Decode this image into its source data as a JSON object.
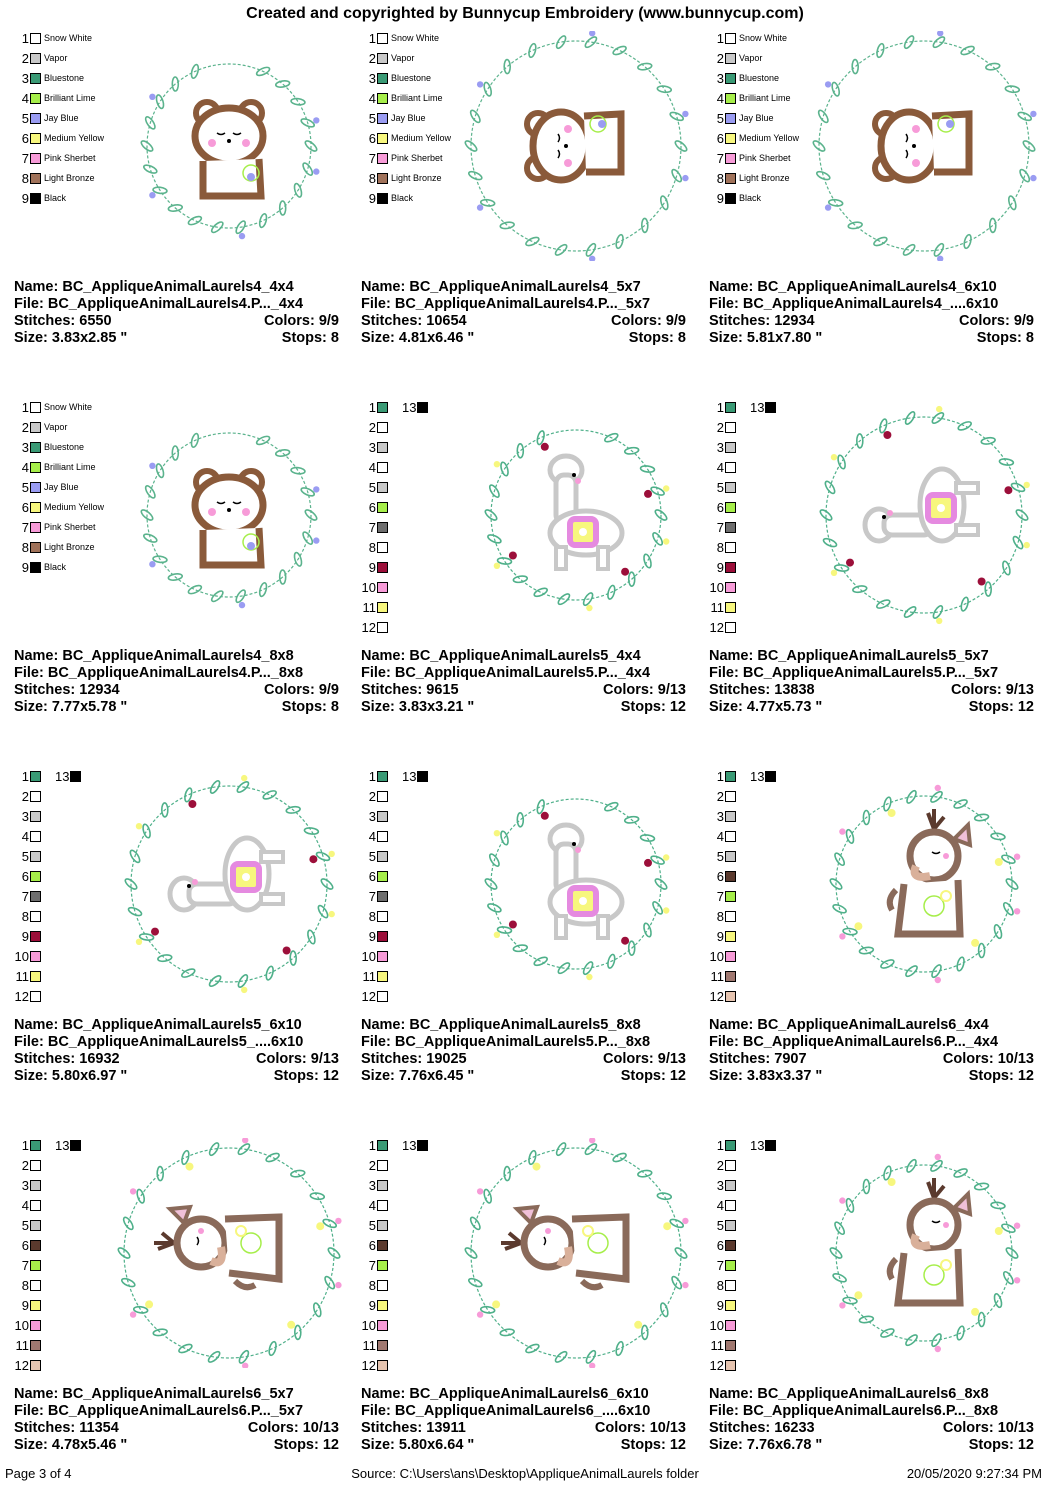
{
  "header": "Created and copyrighted by Bunnycup Embroidery (www.bunnycup.com)",
  "labels": {
    "name": "Name:",
    "file": "File:",
    "stitches": "Stitches:",
    "colors": "Colors:",
    "size": "Size:",
    "stops": "Stops:"
  },
  "palette_a": [
    {
      "n": "1",
      "hex": "#ffffff",
      "label": "Snow White"
    },
    {
      "n": "2",
      "hex": "#c8c8c8",
      "label": "Vapor"
    },
    {
      "n": "3",
      "hex": "#3a9a75",
      "label": "Bluestone"
    },
    {
      "n": "4",
      "hex": "#a6ee4a",
      "label": "Brilliant Lime"
    },
    {
      "n": "5",
      "hex": "#9a9cf2",
      "label": "Jay Blue"
    },
    {
      "n": "6",
      "hex": "#f7f77e",
      "label": "Medium Yellow"
    },
    {
      "n": "7",
      "hex": "#f79bd8",
      "label": "Pink Sherbet"
    },
    {
      "n": "8",
      "hex": "#a0725a",
      "label": "Light Bronze"
    },
    {
      "n": "9",
      "hex": "#000000",
      "label": "Black"
    }
  ],
  "palette_b": [
    {
      "n": "1",
      "hex": "#3a9a75"
    },
    {
      "n": "2",
      "hex": "#ffffff"
    },
    {
      "n": "3",
      "hex": "#c8c8c8"
    },
    {
      "n": "4",
      "hex": "#ffffff"
    },
    {
      "n": "5",
      "hex": "#c8c8c8"
    },
    {
      "n": "6",
      "hex": "#a6ee4a"
    },
    {
      "n": "7",
      "hex": "#6e6e6e"
    },
    {
      "n": "8",
      "hex": "#ffffff"
    },
    {
      "n": "9",
      "hex": "#9c0f3a"
    },
    {
      "n": "10",
      "hex": "#f79bd8"
    },
    {
      "n": "11",
      "hex": "#f7f77e"
    },
    {
      "n": "12",
      "hex": "#ffffff"
    },
    {
      "n": "13",
      "hex": "#000000"
    }
  ],
  "palette_c": [
    {
      "n": "1",
      "hex": "#3a9a75"
    },
    {
      "n": "2",
      "hex": "#ffffff"
    },
    {
      "n": "3",
      "hex": "#c8c8c8"
    },
    {
      "n": "4",
      "hex": "#ffffff"
    },
    {
      "n": "5",
      "hex": "#c8c8c8"
    },
    {
      "n": "6",
      "hex": "#5b3a2e"
    },
    {
      "n": "7",
      "hex": "#a6ee4a"
    },
    {
      "n": "8",
      "hex": "#ffffff"
    },
    {
      "n": "9",
      "hex": "#f7f77e"
    },
    {
      "n": "10",
      "hex": "#f79bd8"
    },
    {
      "n": "11",
      "hex": "#a07870"
    },
    {
      "n": "12",
      "hex": "#e6c4b0"
    },
    {
      "n": "13",
      "hex": "#000000"
    }
  ],
  "designs": [
    {
      "name": "BC_AppliqueAnimalLaurels4_4x4",
      "file": "BC_AppliqueAnimalLaurels4.P..._4x4",
      "stitches": "6550",
      "colors": "9/9",
      "size": "3.83x2.85 \"",
      "stops": "8",
      "palette": "a",
      "art": "bear-sitting-icon"
    },
    {
      "name": "BC_AppliqueAnimalLaurels4_5x7",
      "file": "BC_AppliqueAnimalLaurels4.P..._5x7",
      "stitches": "10654",
      "colors": "9/9",
      "size": "4.81x6.46 \"",
      "stops": "8",
      "palette": "a",
      "art": "bear-rotated-icon"
    },
    {
      "name": "BC_AppliqueAnimalLaurels4_6x10",
      "file": "BC_AppliqueAnimalLaurels4_....6x10",
      "stitches": "12934",
      "colors": "9/9",
      "size": "5.81x7.80 \"",
      "stops": "8",
      "palette": "a",
      "art": "bear-rotated-icon"
    },
    {
      "name": "BC_AppliqueAnimalLaurels4_8x8",
      "file": "BC_AppliqueAnimalLaurels4.P..._8x8",
      "stitches": "12934",
      "colors": "9/9",
      "size": "7.77x5.78 \"",
      "stops": "8",
      "palette": "a",
      "art": "bear-sitting-icon"
    },
    {
      "name": "BC_AppliqueAnimalLaurels5_4x4",
      "file": "BC_AppliqueAnimalLaurels5.P..._4x4",
      "stitches": "9615",
      "colors": "9/13",
      "size": "3.83x3.21 \"",
      "stops": "12",
      "palette": "b",
      "art": "llama-standing-icon"
    },
    {
      "name": "BC_AppliqueAnimalLaurels5_5x7",
      "file": "BC_AppliqueAnimalLaurels5.P..._5x7",
      "stitches": "13838",
      "colors": "9/13",
      "size": "4.77x5.73 \"",
      "stops": "12",
      "palette": "b",
      "art": "llama-rotated-icon"
    },
    {
      "name": "BC_AppliqueAnimalLaurels5_6x10",
      "file": "BC_AppliqueAnimalLaurels5_....6x10",
      "stitches": "16932",
      "colors": "9/13",
      "size": "5.80x6.97 \"",
      "stops": "12",
      "palette": "b",
      "art": "llama-rotated-icon"
    },
    {
      "name": "BC_AppliqueAnimalLaurels5_8x8",
      "file": "BC_AppliqueAnimalLaurels5.P..._8x8",
      "stitches": "19025",
      "colors": "9/13",
      "size": "7.76x6.45 \"",
      "stops": "12",
      "palette": "b",
      "art": "llama-standing-icon"
    },
    {
      "name": "BC_AppliqueAnimalLaurels6_4x4",
      "file": "BC_AppliqueAnimalLaurels6.P..._4x4",
      "stitches": "7907",
      "colors": "10/13",
      "size": "3.83x3.37 \"",
      "stops": "12",
      "palette": "c",
      "art": "deer-standing-icon"
    },
    {
      "name": "BC_AppliqueAnimalLaurels6_5x7",
      "file": "BC_AppliqueAnimalLaurels6.P..._5x7",
      "stitches": "11354",
      "colors": "10/13",
      "size": "4.78x5.46 \"",
      "stops": "12",
      "palette": "c",
      "art": "deer-rotated-icon"
    },
    {
      "name": "BC_AppliqueAnimalLaurels6_6x10",
      "file": "BC_AppliqueAnimalLaurels6_....6x10",
      "stitches": "13911",
      "colors": "10/13",
      "size": "5.80x6.64 \"",
      "stops": "12",
      "palette": "c",
      "art": "deer-rotated-icon"
    },
    {
      "name": "BC_AppliqueAnimalLaurels6_8x8",
      "file": "BC_AppliqueAnimalLaurels6.P..._8x8",
      "stitches": "16233",
      "colors": "10/13",
      "size": "7.76x6.78 \"",
      "stops": "12",
      "palette": "c",
      "art": "deer-standing-icon"
    }
  ],
  "footer": {
    "page": "Page 3 of 4",
    "source": "Source: C:\\Users\\ans\\Desktop\\AppliqueAnimalLaurels folder",
    "date": "20/05/2020 9:27:34 PM"
  }
}
